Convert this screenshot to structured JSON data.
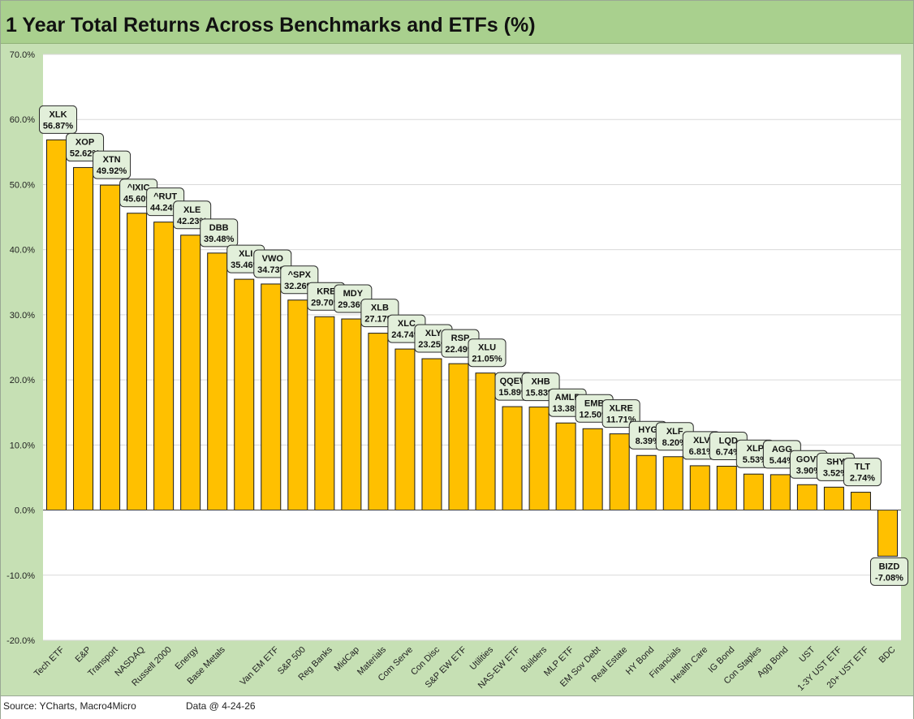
{
  "title": "1 Year Total Returns Across Benchmarks and ETFs (%)",
  "footer": {
    "source": "Source: YCharts, Macro4Micro",
    "data_date": "Data @ 4-24-26"
  },
  "colors": {
    "bar_fill": "#ffc000",
    "bar_stroke": "#1a1a1a",
    "label_fill": "#e2efda",
    "frame_bg": "#c6e0b4",
    "title_bg": "#a9d08e",
    "gridline": "#d9d9d9"
  },
  "chart_data": {
    "type": "bar",
    "title": "1 Year Total Returns Across Benchmarks and ETFs (%)",
    "xlabel": "",
    "ylabel": "",
    "ylim": [
      -20,
      70
    ],
    "yticks": [
      -20,
      -10,
      0,
      10,
      20,
      30,
      40,
      50,
      60,
      70
    ],
    "ytick_labels": [
      "-20.0%",
      "-10.0%",
      "0.0%",
      "10.0%",
      "20.0%",
      "30.0%",
      "40.0%",
      "50.0%",
      "60.0%",
      "70.0%"
    ],
    "grid": true,
    "legend": "none",
    "categories": [
      "Tech ETF",
      "E&P",
      "Transport",
      "NASDAQ",
      "Russell 2000",
      "Energy",
      "Base Metals",
      "",
      "Van EM ETF",
      "S&P 500",
      "Reg Banks",
      "MidCap",
      "Materials",
      "Com Serve",
      "Con Disc",
      "S&P EW ETF",
      "Utilities",
      "NAS-EW ETF",
      "Builders",
      "MLP ETF",
      "EM Sov Debt",
      "Real Estate",
      "HY Bond",
      "Financials",
      "Health Care",
      "IG Bond",
      "Con Staples",
      "Agg Bond",
      "UST",
      "1-3Y UST ETF",
      "20+ UST ETF",
      "BDC"
    ],
    "tickers": [
      "XLK",
      "XOP",
      "XTN",
      "^IXIC",
      "^RUT",
      "XLE",
      "DBB",
      "XLI",
      "VWO",
      "^SPX",
      "KRE",
      "MDY",
      "XLB",
      "XLC",
      "XLY",
      "RSP",
      "XLU",
      "QQEW",
      "XHB",
      "AMLP",
      "EMB",
      "XLRE",
      "HYG",
      "XLF",
      "XLV",
      "LQD",
      "XLP",
      "AGG",
      "GOVT",
      "SHY",
      "TLT",
      "BIZD"
    ],
    "values": [
      56.87,
      52.62,
      49.92,
      45.6,
      44.24,
      42.23,
      39.48,
      35.46,
      34.73,
      32.26,
      29.7,
      29.36,
      27.17,
      24.74,
      23.25,
      22.49,
      21.05,
      15.89,
      15.83,
      13.38,
      12.5,
      11.71,
      8.39,
      8.2,
      6.81,
      6.74,
      5.53,
      5.44,
      3.9,
      3.52,
      2.74,
      -7.08
    ],
    "data_labels": [
      "56.87%",
      "52.62%",
      "49.92%",
      "45.60%",
      "44.24%",
      "42.23%",
      "39.48%",
      "35.46%",
      "34.73%",
      "32.26%",
      "29.70%",
      "29.36%",
      "27.17%",
      "24.74%",
      "23.25%",
      "22.49%",
      "21.05%",
      "15.89%",
      "15.83%",
      "13.38%",
      "12.50%",
      "11.71%",
      "8.39%",
      "8.20%",
      "6.81%",
      "6.74%",
      "5.53%",
      "5.44%",
      "3.90%",
      "3.52%",
      "2.74%",
      "-7.08%"
    ]
  }
}
